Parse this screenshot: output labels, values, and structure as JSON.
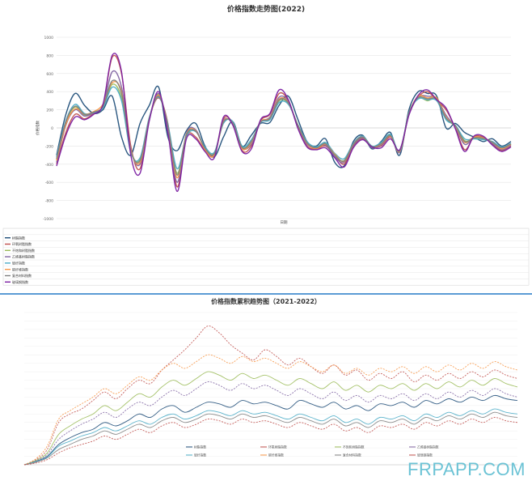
{
  "watermark": "FRPAPP.COM",
  "chart_data": [
    {
      "type": "line",
      "title": "价格指数走势图(2022)",
      "ylabel": "价格指数",
      "xlabel": "日期",
      "ylim": [
        -1000,
        1000
      ],
      "yticks": [
        -1000,
        -800,
        -600,
        -400,
        -200,
        0,
        200,
        400,
        600,
        800,
        1000
      ],
      "grid": true,
      "legend": "bottom",
      "series": [
        {
          "name": "树脂指数",
          "color": "#1f4e79",
          "values": [
            -300,
            150,
            380,
            250,
            160,
            200,
            350,
            -100,
            -300,
            50,
            250,
            450,
            -100,
            -250,
            -30,
            50,
            -200,
            -320,
            -100,
            70,
            -200,
            -80,
            50,
            60,
            250,
            350,
            100,
            -150,
            -200,
            -120,
            -380,
            -420,
            -150,
            -80,
            -230,
            -150,
            -50,
            -300,
            200,
            400,
            380,
            350,
            0,
            50,
            -50,
            -100,
            -150,
            -120,
            -200,
            -150
          ]
        },
        {
          "name": "环氧树脂指数",
          "color": "#c0504d",
          "values": [
            -400,
            -50,
            150,
            100,
            160,
            250,
            780,
            600,
            -200,
            -450,
            100,
            330,
            50,
            -650,
            -100,
            -100,
            -250,
            -300,
            100,
            50,
            -250,
            -200,
            80,
            150,
            380,
            300,
            10,
            -200,
            -230,
            -200,
            -300,
            -400,
            -200,
            -120,
            -200,
            -200,
            -100,
            -250,
            150,
            340,
            400,
            300,
            200,
            0,
            -240,
            -100,
            -100,
            -180,
            -250,
            -200
          ]
        },
        {
          "name": "不饱和树脂指数",
          "color": "#9bbb59",
          "values": [
            -350,
            60,
            230,
            140,
            170,
            230,
            480,
            330,
            -250,
            -350,
            110,
            370,
            20,
            -500,
            -80,
            -30,
            -220,
            -280,
            60,
            60,
            -210,
            -150,
            70,
            100,
            300,
            270,
            30,
            -160,
            -220,
            -170,
            -300,
            -360,
            -180,
            -100,
            -210,
            -170,
            -80,
            -260,
            160,
            330,
            300,
            320,
            100,
            20,
            -140,
            -120,
            -120,
            -160,
            -220,
            -180
          ]
        },
        {
          "name": "乙烯基树脂指数",
          "color": "#8064a2",
          "values": [
            -380,
            30,
            200,
            130,
            170,
            240,
            620,
            450,
            -230,
            -400,
            90,
            380,
            0,
            -600,
            -60,
            -20,
            -230,
            -290,
            80,
            40,
            -220,
            -180,
            60,
            120,
            340,
            290,
            20,
            -180,
            -220,
            -190,
            -320,
            -380,
            -190,
            -110,
            -220,
            -190,
            -90,
            -270,
            150,
            340,
            350,
            320,
            140,
            10,
            -180,
            -110,
            -110,
            -170,
            -240,
            -190
          ]
        },
        {
          "name": "玻纤指数",
          "color": "#4bacc6",
          "values": [
            -320,
            80,
            260,
            160,
            170,
            220,
            450,
            300,
            -270,
            -330,
            120,
            340,
            40,
            -450,
            -90,
            -40,
            -210,
            -270,
            50,
            70,
            -200,
            -130,
            60,
            90,
            280,
            260,
            40,
            -150,
            -210,
            -160,
            -280,
            -340,
            -170,
            -90,
            -200,
            -160,
            -70,
            -250,
            170,
            320,
            310,
            300,
            90,
            30,
            -120,
            -120,
            -130,
            -150,
            -210,
            -170
          ]
        },
        {
          "name": "碳纤维指数",
          "color": "#f79646",
          "values": [
            -360,
            40,
            210,
            150,
            180,
            260,
            500,
            400,
            -240,
            -380,
            100,
            360,
            10,
            -550,
            -70,
            -30,
            -240,
            -300,
            70,
            50,
            -230,
            -160,
            70,
            110,
            320,
            280,
            30,
            -170,
            -230,
            -180,
            -290,
            -370,
            -180,
            -100,
            -210,
            -180,
            -90,
            -260,
            160,
            350,
            330,
            330,
            120,
            20,
            -160,
            -100,
            -110,
            -160,
            -230,
            -180
          ]
        },
        {
          "name": "复合材料指数",
          "color": "#7f7f7f",
          "values": [
            -340,
            70,
            240,
            150,
            175,
            235,
            520,
            380,
            -250,
            -360,
            105,
            350,
            20,
            -520,
            -75,
            -35,
            -225,
            -285,
            65,
            55,
            -215,
            -150,
            65,
            105,
            310,
            275,
            35,
            -165,
            -220,
            -175,
            -300,
            -365,
            -180,
            -100,
            -205,
            -175,
            -85,
            -255,
            165,
            335,
            320,
            315,
            110,
            25,
            -150,
            -110,
            -115,
            -160,
            -220,
            -175
          ]
        },
        {
          "name": "玻璃钢指数",
          "color": "#7b1fa2",
          "values": [
            -420,
            -80,
            120,
            90,
            150,
            260,
            800,
            620,
            -300,
            -500,
            80,
            400,
            -50,
            -700,
            -120,
            -120,
            -260,
            -330,
            120,
            30,
            -260,
            -230,
            90,
            160,
            420,
            310,
            0,
            -210,
            -240,
            -220,
            -330,
            -430,
            -220,
            -130,
            -210,
            -220,
            -120,
            -240,
            140,
            360,
            420,
            310,
            220,
            -10,
            -260,
            -90,
            -90,
            -190,
            -260,
            -210
          ]
        }
      ]
    },
    {
      "type": "line",
      "title": "价格指数累积趋势图（2021-2022）",
      "grid": true,
      "legend": "bottom",
      "series": [
        {
          "name": "树脂指数",
          "color": "#1f4e79",
          "values": [
            0,
            200,
            500,
            1200,
            1600,
            1900,
            2100,
            2500,
            2300,
            2600,
            3000,
            2800,
            3300,
            3500,
            3100,
            3400,
            3700,
            3600,
            3400,
            3800,
            3600,
            3700,
            3500,
            3300,
            3800,
            3600,
            3400,
            3700,
            3300,
            3500,
            3200,
            3600,
            3500,
            3700,
            3400,
            3800,
            3600,
            3900,
            3700,
            4000,
            3800,
            4100,
            3900,
            3800
          ]
        },
        {
          "name": "环氧树脂指数",
          "color": "#c0504d",
          "values": [
            0,
            300,
            900,
            2500,
            3000,
            3300,
            3800,
            4300,
            3900,
            4500,
            5000,
            4800,
            5600,
            6200,
            6800,
            7500,
            8200,
            7800,
            7100,
            6600,
            6200,
            6800,
            6400,
            5900,
            6300,
            5800,
            5400,
            5900,
            5300,
            5600,
            5000,
            5400,
            5100,
            5500,
            4900,
            5300,
            5000,
            5400,
            5100,
            5500,
            5200,
            5600,
            5300,
            5100
          ]
        },
        {
          "name": "不饱和树脂指数",
          "color": "#9bbb59",
          "values": [
            0,
            250,
            700,
            1800,
            2300,
            2700,
            3000,
            3500,
            3200,
            3700,
            4200,
            4000,
            4600,
            5000,
            4700,
            5100,
            5500,
            5300,
            5000,
            5400,
            5100,
            5300,
            5000,
            4700,
            5100,
            4800,
            4500,
            4900,
            4400,
            4700,
            4300,
            4700,
            4500,
            4800,
            4400,
            4800,
            4500,
            4900,
            4600,
            5000,
            4700,
            5100,
            4800,
            4600
          ]
        },
        {
          "name": "乙烯基树脂指数",
          "color": "#8064a2",
          "values": [
            0,
            220,
            600,
            1500,
            2000,
            2400,
            2700,
            3100,
            2800,
            3300,
            3700,
            3500,
            4000,
            4400,
            4100,
            4500,
            4900,
            4700,
            4400,
            4800,
            4500,
            4700,
            4400,
            4100,
            4500,
            4200,
            3900,
            4300,
            3800,
            4100,
            3700,
            4100,
            3900,
            4200,
            3800,
            4200,
            3900,
            4300,
            4000,
            4400,
            4100,
            4500,
            4200,
            4000
          ]
        },
        {
          "name": "玻纤指数",
          "color": "#4bacc6",
          "values": [
            0,
            180,
            450,
            1100,
            1400,
            1700,
            1900,
            2200,
            2000,
            2300,
            2600,
            2400,
            2800,
            3000,
            2700,
            2900,
            3200,
            3100,
            2900,
            3200,
            3000,
            3100,
            2900,
            2700,
            3000,
            2800,
            2600,
            2900,
            2500,
            2700,
            2400,
            2800,
            2700,
            2900,
            2600,
            3000,
            2800,
            3100,
            2900,
            3200,
            3000,
            3300,
            3100,
            3000
          ]
        },
        {
          "name": "碳纤维指数",
          "color": "#f79646",
          "values": [
            0,
            350,
            1100,
            2700,
            3200,
            3600,
            4000,
            4500,
            4200,
            4700,
            5200,
            5000,
            5600,
            6000,
            5700,
            6100,
            6500,
            6300,
            6000,
            6400,
            6100,
            6300,
            6000,
            5700,
            6100,
            5800,
            5500,
            5900,
            5400,
            5700,
            5300,
            5700,
            5500,
            5800,
            5400,
            5800,
            5500,
            5900,
            5600,
            6000,
            5700,
            6100,
            5800,
            5600
          ]
        },
        {
          "name": "复合材料指数",
          "color": "#7f7f7f",
          "values": [
            0,
            150,
            400,
            900,
            1200,
            1500,
            1700,
            2000,
            1800,
            2100,
            2400,
            2200,
            2600,
            2800,
            2500,
            2700,
            3000,
            2900,
            2700,
            3000,
            2800,
            2900,
            2700,
            2500,
            2800,
            2600,
            2400,
            2700,
            2300,
            2500,
            2200,
            2600,
            2500,
            2700,
            2400,
            2800,
            2600,
            2900,
            2700,
            3000,
            2800,
            3100,
            2900,
            2800
          ]
        },
        {
          "name": "玻璃钢指数",
          "color": "#c0504d",
          "values": [
            0,
            100,
            300,
            700,
            1000,
            1200,
            1400,
            1700,
            1500,
            1800,
            2100,
            1900,
            2300,
            2500,
            2200,
            2400,
            2700,
            2600,
            2400,
            2700,
            2500,
            2600,
            2400,
            2200,
            2500,
            2300,
            2100,
            2400,
            2000,
            2200,
            1900,
            2300,
            2200,
            2400,
            2100,
            2500,
            2300,
            2600,
            2400,
            2700,
            2500,
            2800,
            2600,
            2500
          ]
        }
      ]
    }
  ]
}
